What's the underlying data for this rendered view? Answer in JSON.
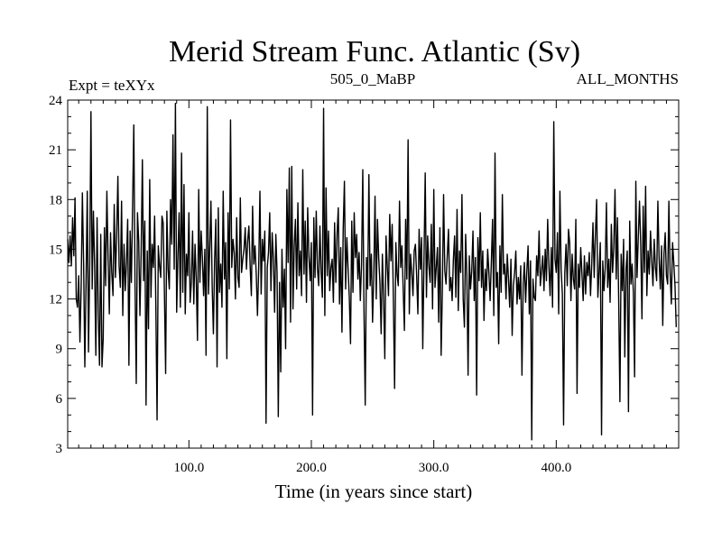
{
  "chart_data": {
    "type": "line",
    "title": "Merid Stream Func. Atlantic (Sv)",
    "subtitle_left": "Expt = teXYx",
    "subtitle_center": "505_0_MaBP",
    "subtitle_right": "ALL_MONTHS",
    "xlabel": "Time (in years since start)",
    "ylabel": "",
    "xlim": [
      1,
      500
    ],
    "ylim": [
      3,
      24
    ],
    "x_ticks": [
      100,
      200,
      300,
      400
    ],
    "x_tick_labels": [
      "100.0",
      "200.0",
      "300.0",
      "400.0"
    ],
    "y_ticks": [
      3,
      6,
      9,
      12,
      15,
      18,
      21,
      24
    ],
    "y_tick_labels": [
      "3",
      "6",
      "9",
      "12",
      "15",
      "18",
      "21",
      "24"
    ],
    "grid": false,
    "legend": "none",
    "line_color": "#000000",
    "series": [
      {
        "x_start": 1,
        "x_step": 1,
        "values": [
          15.6,
          14.2,
          15.8,
          14.0,
          16.9,
          14.6,
          18.1,
          12.0,
          11.5,
          13.4,
          9.4,
          12.7,
          18.4,
          14.2,
          7.9,
          13.0,
          18.5,
          8.8,
          14.1,
          23.3,
          12.6,
          17.3,
          14.0,
          8.6,
          16.9,
          11.0,
          8.0,
          15.9,
          7.9,
          9.6,
          16.3,
          12.8,
          18.5,
          14.5,
          11.1,
          16.0,
          13.6,
          12.2,
          17.7,
          13.3,
          15.8,
          19.4,
          14.0,
          12.7,
          17.9,
          11.0,
          15.3,
          12.5,
          14.2,
          16.8,
          8.0,
          16.1,
          13.0,
          17.6,
          22.5,
          12.9,
          6.9,
          17.2,
          15.5,
          11.0,
          14.8,
          20.4,
          13.1,
          16.7,
          5.6,
          14.9,
          10.2,
          19.2,
          12.1,
          15.3,
          13.9,
          17.0,
          11.6,
          4.7,
          15.2,
          14.0,
          13.3,
          17.0,
          16.6,
          12.4,
          7.5,
          17.3,
          13.8,
          12.6,
          18.0,
          15.3,
          21.9,
          13.8,
          23.8,
          11.2,
          14.5,
          17.2,
          11.5,
          20.8,
          12.4,
          18.9,
          11.1,
          14.7,
          13.4,
          17.2,
          11.8,
          13.0,
          16.1,
          11.7,
          15.3,
          13.2,
          9.5,
          18.6,
          13.0,
          16.1,
          14.5,
          12.2,
          15.0,
          8.6,
          23.6,
          12.3,
          15.0,
          17.9,
          12.8,
          9.9,
          14.4,
          16.8,
          7.9,
          17.5,
          12.4,
          14.1,
          11.5,
          18.5,
          13.2,
          15.4,
          8.4,
          17.2,
          12.6,
          22.8,
          13.9,
          15.6,
          14.8,
          12.0,
          16.9,
          13.3,
          12.7,
          18.1,
          13.6,
          14.4,
          15.0,
          16.3,
          13.8,
          15.5,
          16.4,
          14.0,
          12.2,
          17.6,
          14.1,
          15.2,
          13.5,
          11.0,
          13.9,
          18.5,
          12.3,
          15.6,
          14.3,
          16.1,
          4.5,
          13.9,
          14.8,
          17.2,
          12.5,
          16.0,
          14.4,
          11.2,
          15.9,
          13.6,
          4.9,
          13.0,
          7.6,
          15.0,
          11.5,
          13.8,
          9.0,
          18.6,
          14.2,
          19.9,
          10.6,
          20.0,
          11.4,
          15.2,
          16.8,
          12.6,
          17.8,
          13.4,
          14.9,
          12.2,
          19.8,
          13.5,
          16.7,
          11.8,
          17.5,
          14.6,
          13.1,
          15.4,
          5.0,
          16.9,
          13.3,
          17.3,
          13.8,
          12.8,
          16.4,
          13.6,
          12.1,
          23.5,
          11.0,
          18.7,
          13.4,
          16.1,
          12.5,
          13.9,
          14.4,
          11.8,
          16.6,
          13.0,
          15.9,
          17.5,
          11.7,
          15.1,
          10.0,
          16.2,
          19.1,
          12.6,
          15.7,
          13.8,
          12.1,
          9.3,
          16.7,
          12.4,
          17.2,
          14.5,
          15.9,
          13.2,
          14.8,
          11.9,
          14.1,
          19.8,
          11.3,
          5.6,
          14.5,
          12.6,
          19.5,
          12.8,
          14.7,
          10.6,
          13.4,
          18.2,
          12.0,
          16.8,
          14.5,
          13.0,
          9.9,
          14.7,
          12.1,
          8.4,
          15.8,
          14.0,
          12.2,
          17.1,
          14.3,
          16.5,
          11.9,
          6.6,
          15.4,
          13.5,
          12.8,
          17.9,
          13.9,
          15.2,
          12.6,
          10.1,
          16.8,
          13.2,
          21.6,
          11.1,
          14.7,
          13.6,
          12.2,
          14.9,
          15.3,
          13.4,
          11.1,
          16.2,
          13.8,
          15.7,
          9.0,
          14.4,
          19.6,
          12.1,
          15.8,
          14.0,
          13.0,
          16.5,
          11.4,
          18.6,
          12.7,
          13.9,
          15.1,
          10.6,
          16.3,
          8.6,
          12.5,
          18.3,
          13.7,
          12.9,
          14.6,
          16.2,
          12.5,
          13.3,
          11.9,
          14.4,
          15.8,
          12.1,
          17.4,
          11.3,
          14.9,
          13.6,
          18.3,
          12.0,
          10.3,
          15.9,
          13.4,
          7.4,
          14.6,
          12.6,
          13.7,
          16.1,
          11.9,
          14.5,
          6.2,
          15.7,
          13.1,
          17.2,
          12.7,
          14.9,
          10.7,
          13.8,
          12.5,
          15.0,
          13.6,
          11.9,
          14.2,
          16.8,
          11.0,
          20.8,
          12.7,
          13.6,
          9.3,
          15.2,
          12.4,
          18.3,
          13.5,
          14.1,
          12.0,
          14.7,
          13.2,
          11.5,
          14.4,
          9.8,
          12.8,
          13.6,
          14.9,
          11.7,
          13.3,
          12.0,
          14.0,
          7.4,
          12.9,
          14.2,
          11.8,
          13.7,
          15.2,
          11.1,
          14.3,
          3.5,
          13.2,
          12.1,
          11.9,
          14.6,
          13.4,
          16.1,
          12.8,
          13.7,
          14.6,
          12.5,
          15.0,
          13.1,
          16.8,
          14.0,
          12.2,
          15.1,
          11.5,
          22.7,
          14.4,
          13.6,
          16.0,
          11.1,
          18.5,
          13.8,
          12.3,
          4.4,
          13.6,
          15.3,
          12.8,
          16.2,
          15.4,
          11.9,
          14.7,
          13.2,
          12.6,
          16.8,
          6.3,
          14.1,
          12.7,
          15.1,
          13.5,
          11.9,
          14.6,
          12.3,
          14.2,
          13.4,
          14.8,
          12.2,
          14.1,
          16.6,
          13.3,
          15.9,
          18.0,
          12.1,
          13.7,
          15.4,
          3.8,
          14.3,
          12.5,
          13.9,
          17.8,
          12.7,
          14.4,
          11.8,
          16.5,
          13.6,
          15.1,
          18.6,
          13.2,
          16.9,
          12.0,
          5.8,
          14.7,
          12.5,
          15.6,
          8.5,
          13.8,
          14.9,
          5.2,
          16.7,
          12.9,
          14.1,
          12.4,
          7.3,
          19.1,
          13.3,
          15.7,
          17.9,
          15.3,
          10.8,
          17.6,
          13.6,
          18.8,
          12.2,
          14.9,
          13.5,
          16.1,
          14.3,
          12.8,
          15.6,
          13.9,
          13.1,
          17.9,
          14.5,
          12.6,
          15.2,
          10.4,
          14.7,
          16.0,
          13.4,
          12.9,
          17.9,
          13.6,
          11.7,
          15.4,
          14.2,
          12.8,
          10.3
        ]
      }
    ]
  }
}
